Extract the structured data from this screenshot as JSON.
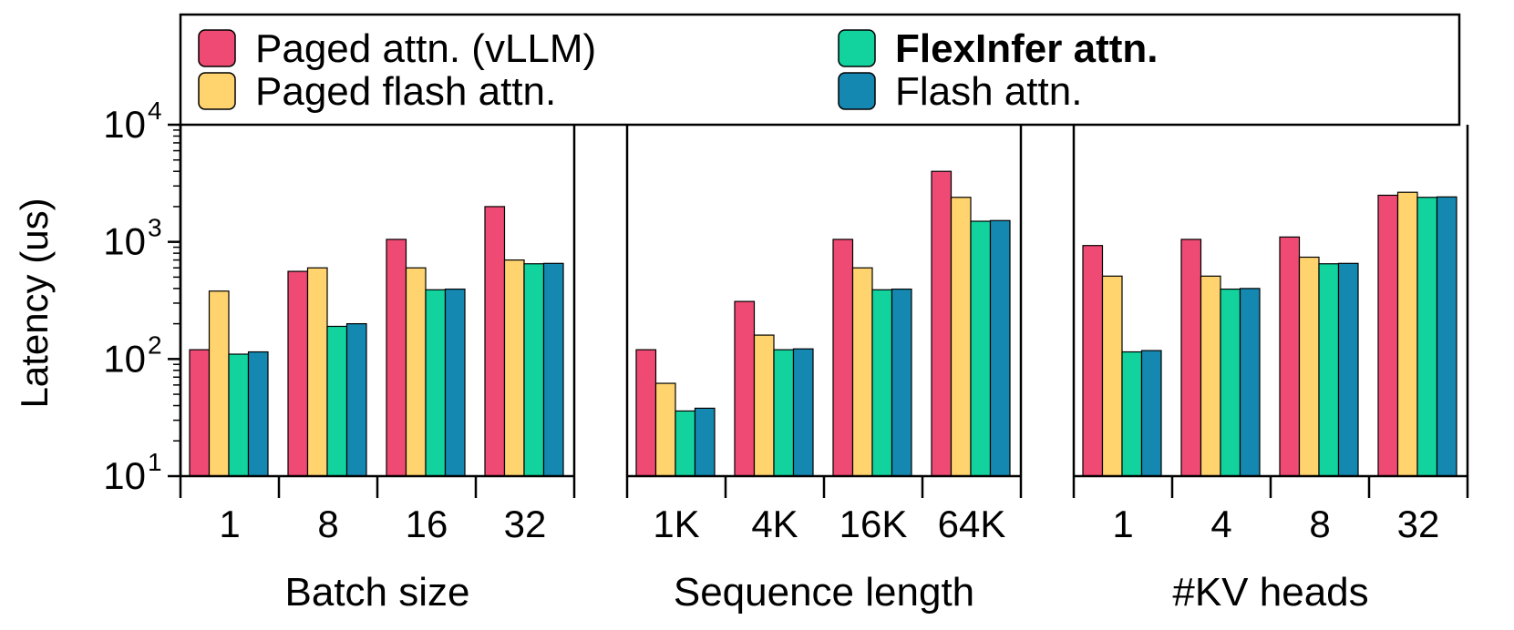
{
  "colors": {
    "paged_vllm": "#EE4A74",
    "paged_flash": "#FFD36E",
    "flexinfer": "#12D39E",
    "flash": "#1488B0"
  },
  "legend": [
    {
      "label": "Paged attn. (vLLM)",
      "color": "#EE4A74",
      "bold": false
    },
    {
      "label": "Paged flash attn.",
      "color": "#FFD36E",
      "bold": false
    },
    {
      "label": "FlexInfer attn.",
      "color": "#12D39E",
      "bold": true
    },
    {
      "label": "Flash attn.",
      "color": "#1488B0",
      "bold": false
    }
  ],
  "ylabel": "Latency (us)",
  "chart_data": [
    {
      "type": "bar",
      "xlabel": "Batch size",
      "categories": [
        "1",
        "8",
        "16",
        "32"
      ],
      "yscale": "log",
      "ylim": [
        10,
        10000
      ],
      "series": [
        {
          "name": "Paged attn. (vLLM)",
          "values": [
            120,
            560,
            1050,
            2000
          ]
        },
        {
          "name": "Paged flash attn.",
          "values": [
            380,
            600,
            600,
            700
          ]
        },
        {
          "name": "FlexInfer attn.",
          "values": [
            110,
            190,
            390,
            650
          ]
        },
        {
          "name": "Flash attn.",
          "values": [
            115,
            200,
            395,
            655
          ]
        }
      ]
    },
    {
      "type": "bar",
      "xlabel": "Sequence length",
      "categories": [
        "1K",
        "4K",
        "16K",
        "64K"
      ],
      "yscale": "log",
      "ylim": [
        10,
        10000
      ],
      "series": [
        {
          "name": "Paged attn. (vLLM)",
          "values": [
            120,
            310,
            1050,
            4000
          ]
        },
        {
          "name": "Paged flash attn.",
          "values": [
            62,
            160,
            600,
            2400
          ]
        },
        {
          "name": "FlexInfer attn.",
          "values": [
            36,
            120,
            390,
            1500
          ]
        },
        {
          "name": "Flash attn.",
          "values": [
            38,
            122,
            395,
            1520
          ]
        }
      ]
    },
    {
      "type": "bar",
      "xlabel": "#KV heads",
      "categories": [
        "1",
        "4",
        "8",
        "32"
      ],
      "yscale": "log",
      "ylim": [
        10,
        10000
      ],
      "series": [
        {
          "name": "Paged attn. (vLLM)",
          "values": [
            930,
            1050,
            1100,
            2500
          ]
        },
        {
          "name": "Paged flash attn.",
          "values": [
            510,
            510,
            740,
            2650
          ]
        },
        {
          "name": "FlexInfer attn.",
          "values": [
            115,
            395,
            650,
            2400
          ]
        },
        {
          "name": "Flash attn.",
          "values": [
            118,
            400,
            655,
            2420
          ]
        }
      ]
    }
  ]
}
